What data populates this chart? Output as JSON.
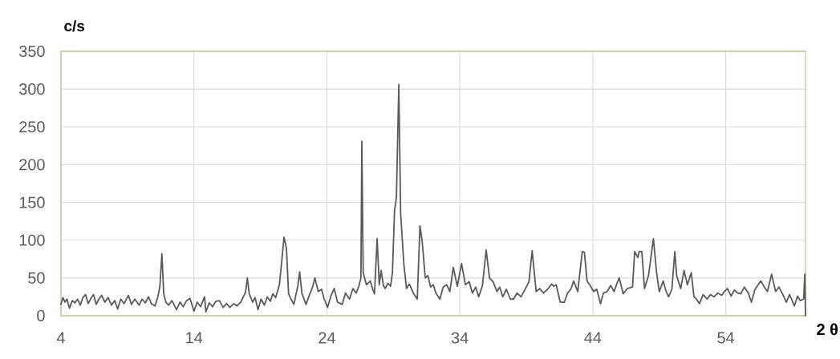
{
  "chart_data": {
    "type": "line",
    "xlabel": "2 θ",
    "ylabel": "c/s",
    "color": "#595959",
    "x": [
      4.0,
      4.15,
      4.3,
      4.45,
      4.64,
      4.85,
      5.05,
      5.25,
      5.45,
      5.65,
      5.85,
      6.05,
      6.25,
      6.45,
      6.65,
      6.85,
      7.06,
      7.3,
      7.55,
      7.8,
      8.05,
      8.26,
      8.5,
      8.75,
      9.07,
      9.3,
      9.55,
      9.87,
      10.1,
      10.35,
      10.58,
      10.8,
      11.08,
      11.3,
      11.44,
      11.59,
      11.73,
      11.89,
      12.1,
      12.35,
      12.69,
      12.95,
      13.2,
      13.45,
      13.7,
      14.0,
      14.25,
      14.5,
      14.8,
      14.9,
      15.15,
      15.4,
      15.65,
      15.91,
      16.2,
      16.45,
      16.71,
      17.0,
      17.25,
      17.52,
      17.88,
      18.02,
      18.16,
      18.42,
      18.6,
      18.82,
      19.05,
      19.3,
      19.52,
      19.75,
      19.93,
      20.15,
      20.43,
      20.78,
      20.96,
      21.12,
      21.3,
      21.52,
      21.83,
      21.95,
      22.13,
      22.43,
      22.7,
      22.93,
      23.1,
      23.35,
      23.6,
      23.8,
      24.05,
      24.3,
      24.55,
      24.8,
      25.15,
      25.4,
      25.7,
      25.96,
      26.2,
      26.4,
      26.56,
      26.63,
      26.73,
      26.97,
      27.27,
      27.45,
      27.58,
      27.78,
      27.94,
      28.08,
      28.25,
      28.38,
      28.6,
      28.79,
      28.93,
      29.09,
      29.23,
      29.41,
      29.55,
      29.79,
      29.99,
      30.2,
      30.5,
      30.8,
      31.0,
      31.16,
      31.4,
      31.6,
      31.8,
      32.0,
      32.2,
      32.5,
      32.75,
      33.01,
      33.25,
      33.51,
      33.81,
      34.13,
      34.42,
      34.7,
      34.95,
      35.2,
      35.42,
      35.7,
      35.98,
      36.23,
      36.5,
      36.8,
      37.0,
      37.23,
      37.5,
      37.8,
      38.04,
      38.3,
      38.6,
      38.94,
      39.2,
      39.44,
      39.74,
      40.0,
      40.3,
      40.65,
      40.9,
      41.06,
      41.25,
      41.55,
      41.86,
      42.1,
      42.35,
      42.56,
      42.87,
      43.21,
      43.37,
      43.57,
      43.8,
      44.07,
      44.3,
      44.58,
      44.8,
      45.08,
      45.35,
      45.6,
      45.8,
      45.99,
      46.29,
      46.6,
      46.99,
      47.15,
      47.39,
      47.49,
      47.69,
      47.89,
      48.19,
      48.56,
      48.8,
      49.0,
      49.3,
      49.5,
      49.7,
      49.95,
      50.17,
      50.31,
      50.61,
      50.87,
      51.11,
      51.41,
      51.61,
      51.8,
      52.02,
      52.3,
      52.6,
      52.85,
      53.12,
      53.4,
      53.7,
      53.9,
      54.13,
      54.4,
      54.65,
      54.9,
      55.13,
      55.4,
      55.7,
      55.93,
      56.2,
      56.4,
      56.64,
      56.9,
      57.14,
      57.45,
      57.75,
      58.0,
      58.3,
      58.55,
      58.8,
      59.16,
      59.4,
      59.6,
      59.86,
      59.95,
      60.0
    ],
    "values": [
      15,
      24,
      18,
      22,
      10,
      20,
      17,
      22,
      14,
      24,
      28,
      16,
      23,
      28,
      15,
      22,
      27,
      18,
      24,
      14,
      20,
      9,
      22,
      16,
      27,
      15,
      22,
      14,
      22,
      17,
      25,
      16,
      13,
      26,
      39,
      82,
      29,
      18,
      14,
      20,
      8,
      18,
      12,
      20,
      23,
      6,
      18,
      12,
      25,
      5,
      17,
      12,
      19,
      20,
      11,
      16,
      11,
      16,
      13,
      18,
      31,
      50,
      29,
      18,
      24,
      8,
      22,
      14,
      25,
      19,
      29,
      24,
      41,
      104,
      89,
      29,
      22,
      15,
      41,
      58,
      29,
      15,
      28,
      38,
      50,
      32,
      35,
      22,
      11,
      26,
      36,
      18,
      15,
      30,
      22,
      36,
      30,
      39,
      50,
      231,
      57,
      41,
      46,
      35,
      29,
      102,
      41,
      60,
      40,
      36,
      43,
      39,
      57,
      139,
      156,
      306,
      135,
      68,
      36,
      42,
      30,
      22,
      119,
      100,
      50,
      53,
      38,
      41,
      30,
      22,
      38,
      41,
      32,
      64,
      39,
      69,
      41,
      45,
      30,
      38,
      25,
      40,
      87,
      50,
      45,
      32,
      38,
      25,
      35,
      22,
      22,
      30,
      25,
      36,
      45,
      86,
      32,
      36,
      30,
      36,
      42,
      39,
      41,
      18,
      18,
      30,
      35,
      46,
      32,
      85,
      84,
      46,
      40,
      32,
      35,
      16,
      30,
      32,
      40,
      32,
      42,
      50,
      29,
      36,
      38,
      85,
      77,
      85,
      85,
      36,
      53,
      102,
      57,
      32,
      46,
      33,
      25,
      35,
      85,
      53,
      36,
      60,
      41,
      57,
      25,
      22,
      16,
      28,
      22,
      28,
      25,
      30,
      27,
      32,
      36,
      26,
      34,
      30,
      29,
      38,
      30,
      18,
      35,
      40,
      46,
      38,
      32,
      55,
      32,
      38,
      28,
      18,
      28,
      13,
      26,
      20,
      22,
      55,
      0
    ],
    "xlim": [
      4,
      60
    ],
    "ylim": [
      0,
      350
    ],
    "xticks": [
      4,
      14,
      24,
      34,
      44,
      54
    ],
    "yticks": [
      0,
      50,
      100,
      150,
      200,
      250,
      300,
      350
    ],
    "grid": true
  }
}
